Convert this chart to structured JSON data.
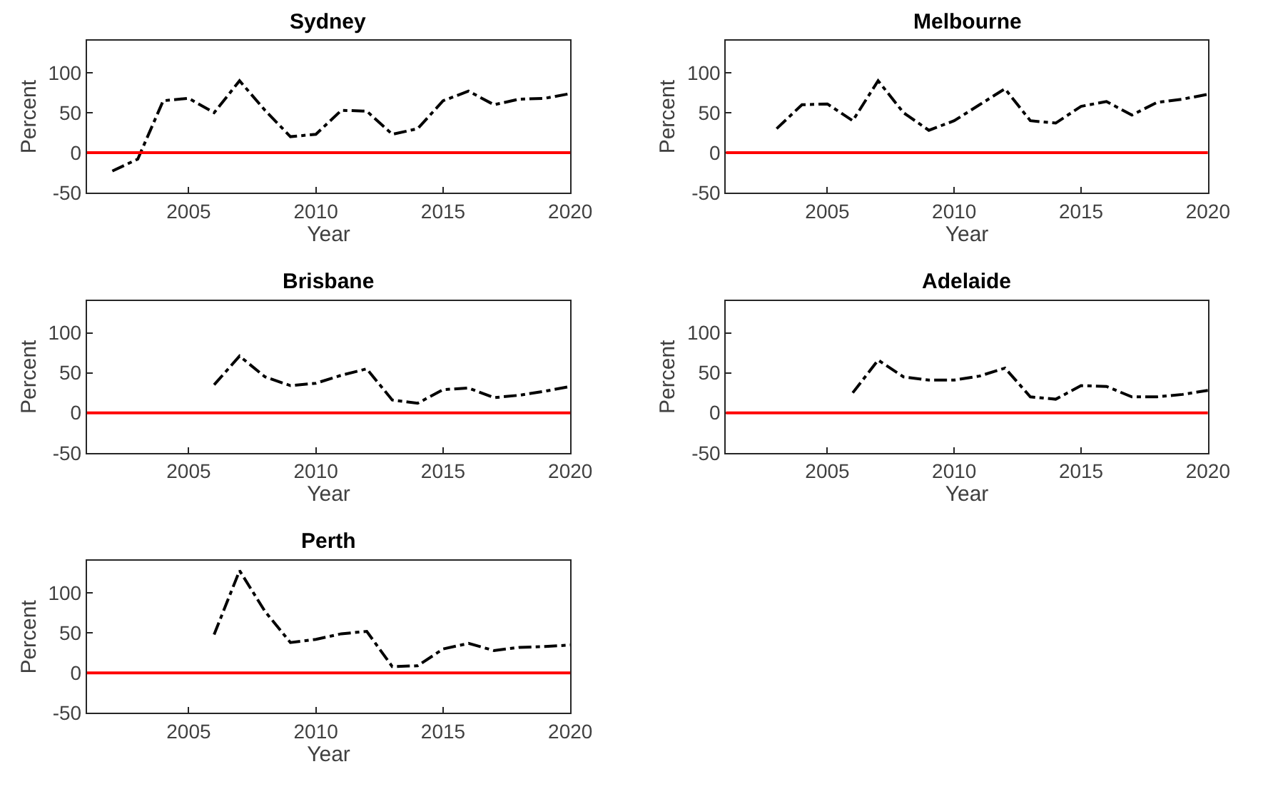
{
  "chart_data": [
    {
      "type": "line",
      "title": "Sydney",
      "xlabel": "Year",
      "ylabel": "Percent",
      "x": [
        2002,
        2003,
        2004,
        2005,
        2006,
        2007,
        2008,
        2009,
        2010,
        2011,
        2012,
        2013,
        2014,
        2015,
        2016,
        2017,
        2018,
        2019,
        2020
      ],
      "series": [
        {
          "color": "#000000",
          "values": [
            -23,
            -8,
            65,
            68,
            50,
            90,
            53,
            20,
            23,
            53,
            52,
            23,
            30,
            65,
            77,
            60,
            67,
            68,
            74
          ]
        }
      ],
      "xlim": [
        2001,
        2020
      ],
      "xticks": [
        2005,
        2010,
        2015,
        2020
      ],
      "ylim": [
        -50,
        140
      ],
      "yticks": [
        -50,
        0,
        50,
        100
      ],
      "line_style": "dashed",
      "ref_lines": [
        {
          "axis": "y",
          "value": 0,
          "color": "#ff0000"
        }
      ]
    },
    {
      "type": "line",
      "title": "Melbourne",
      "xlabel": "Year",
      "ylabel": "Percent",
      "x": [
        2003,
        2004,
        2005,
        2006,
        2007,
        2008,
        2009,
        2010,
        2011,
        2012,
        2013,
        2014,
        2015,
        2016,
        2017,
        2018,
        2019,
        2020
      ],
      "series": [
        {
          "color": "#000000",
          "values": [
            30,
            60,
            61,
            40,
            90,
            50,
            28,
            40,
            60,
            80,
            40,
            37,
            58,
            64,
            47,
            63,
            67,
            73
          ]
        }
      ],
      "xlim": [
        2001,
        2020
      ],
      "xticks": [
        2005,
        2010,
        2015,
        2020
      ],
      "ylim": [
        -50,
        140
      ],
      "yticks": [
        -50,
        0,
        50,
        100
      ],
      "line_style": "dashed",
      "ref_lines": [
        {
          "axis": "y",
          "value": 0,
          "color": "#ff0000"
        }
      ]
    },
    {
      "type": "line",
      "title": "Brisbane",
      "xlabel": "Year",
      "ylabel": "Percent",
      "x": [
        2006,
        2007,
        2008,
        2009,
        2010,
        2011,
        2012,
        2013,
        2014,
        2015,
        2016,
        2017,
        2018,
        2019,
        2020
      ],
      "series": [
        {
          "color": "#000000",
          "values": [
            35,
            71,
            45,
            34,
            37,
            47,
            55,
            16,
            12,
            29,
            31,
            19,
            22,
            27,
            33
          ]
        }
      ],
      "xlim": [
        2001,
        2020
      ],
      "xticks": [
        2005,
        2010,
        2015,
        2020
      ],
      "ylim": [
        -50,
        140
      ],
      "yticks": [
        -50,
        0,
        50,
        100
      ],
      "line_style": "dashed",
      "ref_lines": [
        {
          "axis": "y",
          "value": 0,
          "color": "#ff0000"
        }
      ]
    },
    {
      "type": "line",
      "title": "Adelaide",
      "xlabel": "Year",
      "ylabel": "Percent",
      "x": [
        2006,
        2007,
        2008,
        2009,
        2010,
        2011,
        2012,
        2013,
        2014,
        2015,
        2016,
        2017,
        2018,
        2019,
        2020
      ],
      "series": [
        {
          "color": "#000000",
          "values": [
            25,
            66,
            45,
            41,
            41,
            46,
            56,
            20,
            17,
            34,
            33,
            20,
            20,
            23,
            28
          ]
        }
      ],
      "xlim": [
        2001,
        2020
      ],
      "xticks": [
        2005,
        2010,
        2015,
        2020
      ],
      "ylim": [
        -50,
        140
      ],
      "yticks": [
        -50,
        0,
        50,
        100
      ],
      "line_style": "dashed",
      "ref_lines": [
        {
          "axis": "y",
          "value": 0,
          "color": "#ff0000"
        }
      ]
    },
    {
      "type": "line",
      "title": "Perth",
      "xlabel": "Year",
      "ylabel": "Percent",
      "x": [
        2006,
        2007,
        2008,
        2009,
        2010,
        2011,
        2012,
        2013,
        2014,
        2015,
        2016,
        2017,
        2018,
        2019,
        2020
      ],
      "series": [
        {
          "color": "#000000",
          "values": [
            48,
            128,
            77,
            38,
            42,
            49,
            52,
            8,
            9,
            30,
            37,
            28,
            32,
            33,
            35
          ]
        }
      ],
      "xlim": [
        2001,
        2020
      ],
      "xticks": [
        2005,
        2010,
        2015,
        2020
      ],
      "ylim": [
        -50,
        140
      ],
      "yticks": [
        -50,
        0,
        50,
        100
      ],
      "line_style": "dashed",
      "ref_lines": [
        {
          "axis": "y",
          "value": 0,
          "color": "#ff0000"
        }
      ]
    }
  ]
}
